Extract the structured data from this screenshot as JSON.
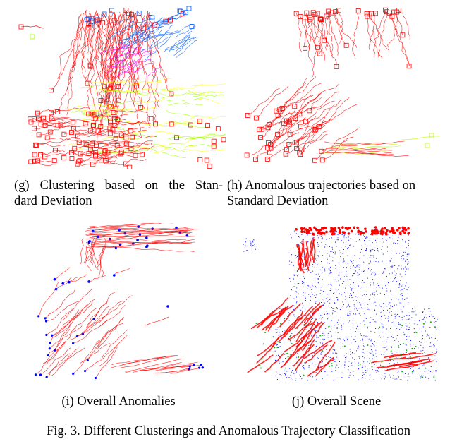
{
  "figure": {
    "panels": [
      {
        "id": "g",
        "caption": "(g) Clustering based on the Standard Deviation",
        "caption_lines": [
          "(g) Clustering based on the Stan-",
          "dard Deviation"
        ],
        "colors": [
          "#ff0000",
          "#ffff00",
          "#a0ff00",
          "#ff00ff",
          "#0060ff"
        ]
      },
      {
        "id": "h",
        "caption": "(h) Anomalous trajectories based on Standard Deviation",
        "caption_lines": [
          "(h) Anomalous trajectories based on",
          "Standard Deviation"
        ],
        "colors": [
          "#ff0000",
          "#c0ff00"
        ]
      },
      {
        "id": "i",
        "caption": "(i) Overall Anomalies",
        "caption_lines": [
          "(i) Overall Anomalies"
        ],
        "colors": [
          "#ff0000",
          "#0000ff"
        ]
      },
      {
        "id": "j",
        "caption": "(j) Overall Scene",
        "caption_lines": [
          "(j) Overall Scene"
        ],
        "colors": [
          "#0000ff",
          "#ff0000",
          "#00c000"
        ]
      }
    ],
    "caption": "Fig. 3.  Different Clusterings and Anomalous Trajectory Classification"
  }
}
